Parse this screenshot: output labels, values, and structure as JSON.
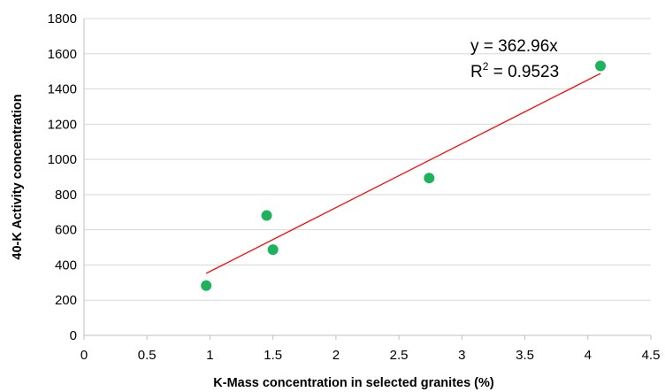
{
  "chart_data": {
    "type": "scatter",
    "xlabel": "K-Mass concentration in selected granites (%)",
    "ylabel": "40-K Activity concentration",
    "xlim": [
      0,
      4.5
    ],
    "ylim": [
      0,
      1800
    ],
    "x_ticks": [
      "0",
      "0.5",
      "1",
      "1.5",
      "2",
      "2.5",
      "3",
      "3.5",
      "4",
      "4.5"
    ],
    "y_ticks": [
      "0",
      "200",
      "400",
      "600",
      "800",
      "1000",
      "1200",
      "1400",
      "1600",
      "1800"
    ],
    "grid": "horizontal",
    "series": [
      {
        "points": [
          {
            "x": 0.97,
            "y": 283
          },
          {
            "x": 1.45,
            "y": 681
          },
          {
            "x": 1.5,
            "y": 487
          },
          {
            "x": 2.74,
            "y": 894
          },
          {
            "x": 4.1,
            "y": 1531
          }
        ],
        "color": "#1db35c"
      }
    ],
    "trendline": {
      "type": "linear-through-origin",
      "slope": 362.96,
      "x_range": [
        0.97,
        4.1
      ],
      "color": "#ff0000",
      "equation": "y = 362.96x",
      "r2_prefix": "R",
      "r2_sup": "2",
      "r2_value": " = 0.9523"
    }
  }
}
